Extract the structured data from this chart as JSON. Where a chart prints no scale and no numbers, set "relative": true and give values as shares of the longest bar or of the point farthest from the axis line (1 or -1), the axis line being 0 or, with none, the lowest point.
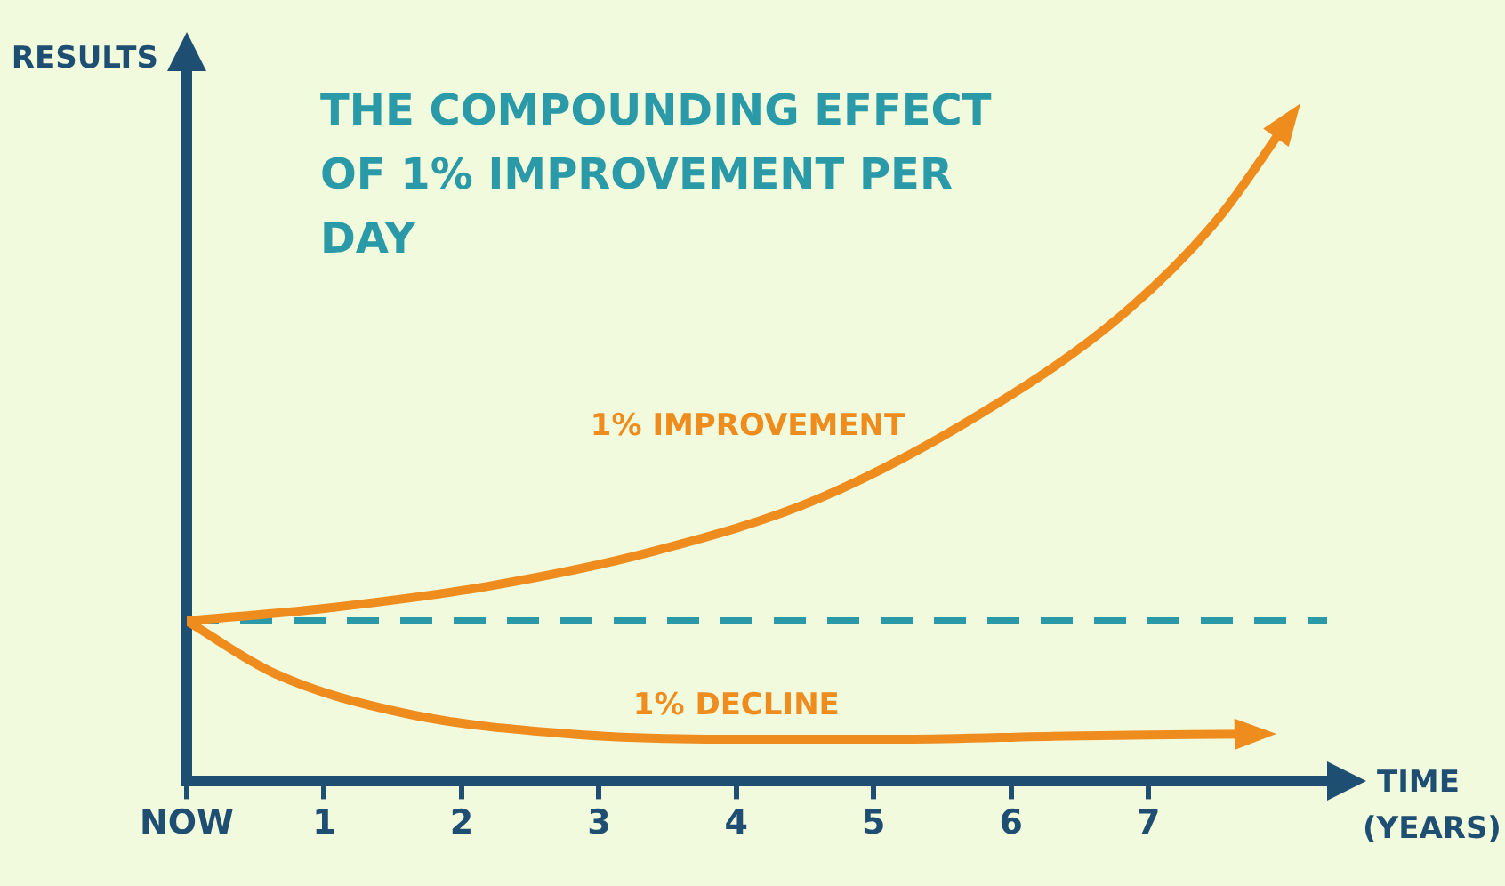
{
  "chart_data": {
    "type": "line",
    "title": "THE COMPOUNDING EFFECT OF 1% IMPROVEMENT PER DAY",
    "xlabel": "TIME (YEARS)",
    "ylabel": "RESULTS",
    "relative": true,
    "xlim": [
      0,
      8.3
    ],
    "xticks": [
      {
        "value": 0,
        "label": "NOW"
      },
      1,
      2,
      3,
      4,
      5,
      6,
      7
    ],
    "series": [
      {
        "name": "1% IMPROVEMENT",
        "color": "#ef8c1e",
        "x": [
          0,
          1.0,
          2.2,
          3.4,
          4.6,
          5.8,
          6.8,
          7.5,
          8.0
        ],
        "values": [
          0.244,
          0.263,
          0.297,
          0.35,
          0.43,
          0.562,
          0.708,
          0.854,
          1.0
        ]
      },
      {
        "name": "1% DECLINE",
        "color": "#ef8c1e",
        "x": [
          0,
          0.64,
          1.6,
          2.8,
          4.0,
          5.2,
          6.4,
          7.75
        ],
        "values": [
          0.244,
          0.164,
          0.103,
          0.072,
          0.064,
          0.064,
          0.069,
          0.072
        ]
      }
    ],
    "ref_lines": [
      {
        "axis": "y",
        "value": 0.244,
        "color": "#2a9aa8",
        "line_style": "dashed"
      }
    ],
    "grid": false,
    "legend": false,
    "marker": "none",
    "line_style": "solid"
  }
}
